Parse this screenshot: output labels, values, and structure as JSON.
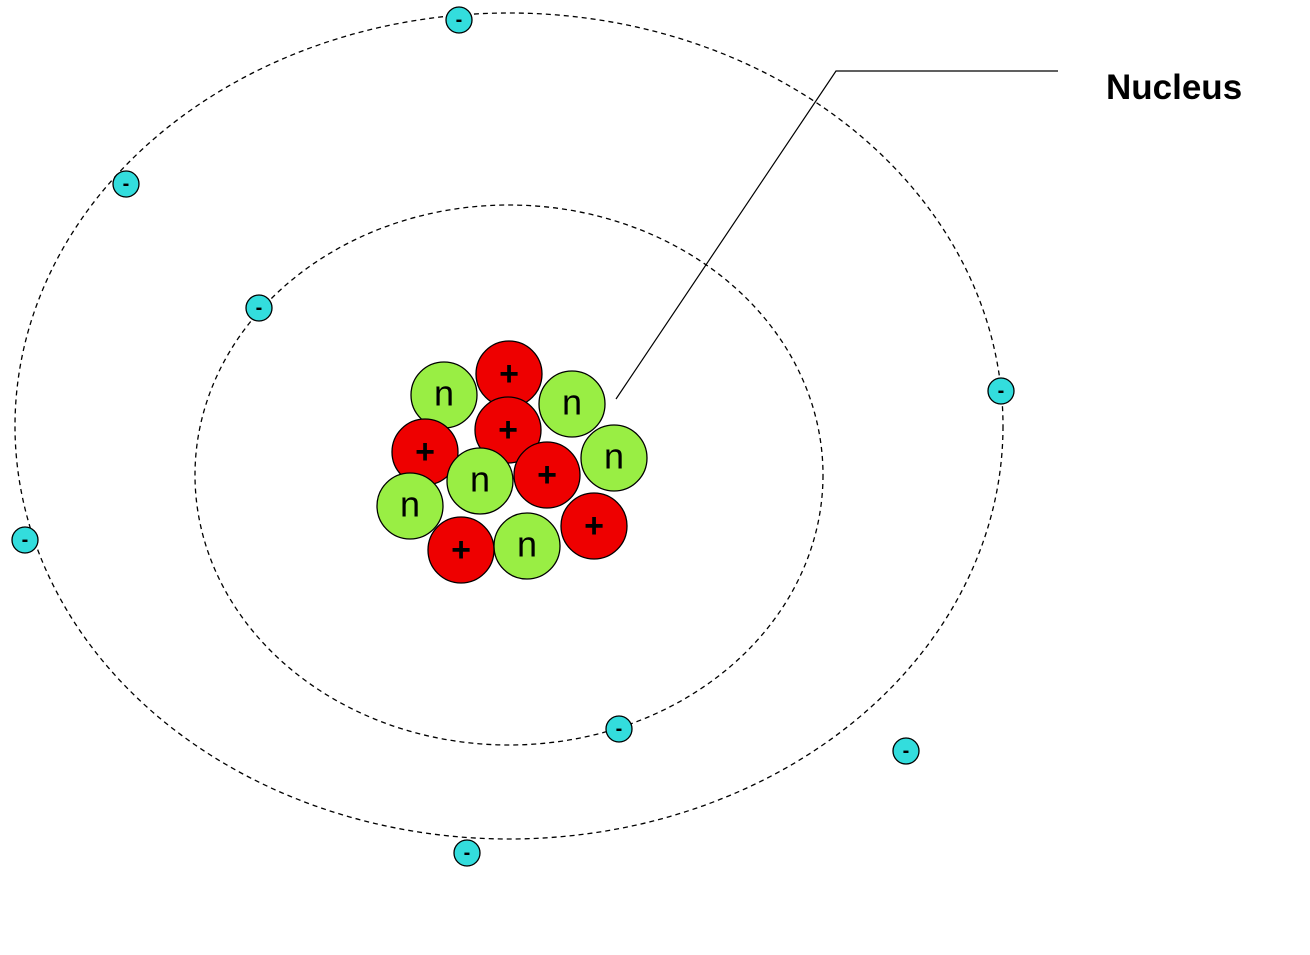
{
  "label": {
    "nucleus": "Nucleus"
  },
  "symbols": {
    "proton": "+",
    "neutron": "n",
    "electron": "-"
  },
  "colors": {
    "proton": "#ee0000",
    "neutron": "#99ee44",
    "electron": "#33dddd",
    "orbit": "#000000",
    "background": "#ffffff"
  },
  "counts": {
    "protons": 6,
    "neutrons": 6,
    "inner_shell_electrons": 2,
    "outer_shell_electrons": 6
  }
}
